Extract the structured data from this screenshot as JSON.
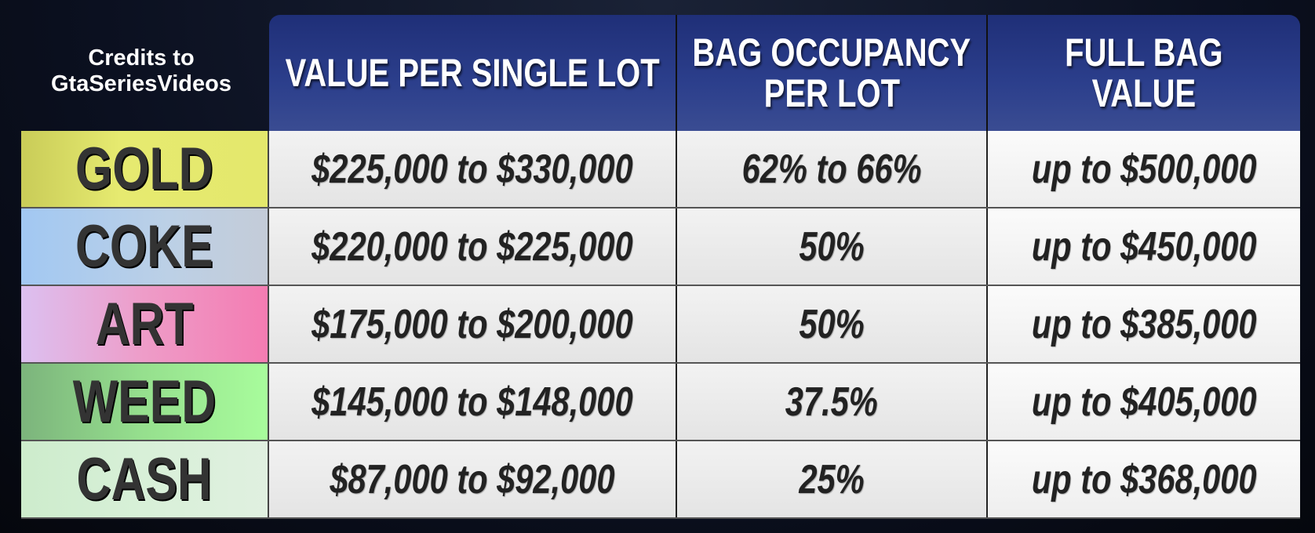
{
  "credits": {
    "line1": "Credits to",
    "line2": "GtaSeriesVideos"
  },
  "headers": [
    "VALUE PER SINGLE LOT",
    [
      "BAG OCCUPANCY",
      "PER LOT"
    ],
    [
      "FULL BAG",
      "VALUE"
    ]
  ],
  "header_text": {
    "c1": "VALUE PER SINGLE LOT",
    "c2a": "BAG OCCUPANCY",
    "c2b": "PER LOT",
    "c3a": "FULL BAG",
    "c3b": "VALUE"
  },
  "colors": {
    "header": "#2c3f8c",
    "gold": "#e2e46a",
    "coke": "#a8c8ee",
    "art": "#f080b4",
    "weed": "#a4f89a",
    "cash": "#d8f0d8"
  },
  "rows": [
    {
      "label": "GOLD",
      "value": "$225,000 to $330,000",
      "occupancy": "62% to 66%",
      "full": "up to $500,000"
    },
    {
      "label": "COKE",
      "value": "$220,000 to $225,000",
      "occupancy": "50%",
      "full": "up to $450,000"
    },
    {
      "label": "ART",
      "value": "$175,000 to $200,000",
      "occupancy": "50%",
      "full": "up to $385,000"
    },
    {
      "label": "WEED",
      "value": "$145,000 to $148,000",
      "occupancy": "37.5%",
      "full": "up to $405,000"
    },
    {
      "label": "CASH",
      "value": "$87,000 to $92,000",
      "occupancy": "25%",
      "full": "up to $368,000"
    }
  ]
}
